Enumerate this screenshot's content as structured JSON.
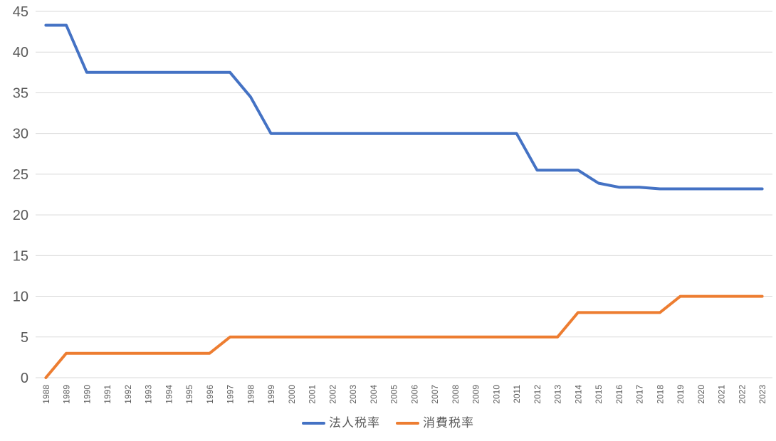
{
  "chart_data": {
    "type": "line",
    "title": "",
    "xlabel": "",
    "ylabel": "",
    "x": [
      "1988",
      "1989",
      "1990",
      "1991",
      "1992",
      "1993",
      "1994",
      "1995",
      "1996",
      "1997",
      "1998",
      "1999",
      "2000",
      "2001",
      "2002",
      "2003",
      "2004",
      "2005",
      "2006",
      "2007",
      "2008",
      "2009",
      "2010",
      "2011",
      "2012",
      "2013",
      "2014",
      "2015",
      "2016",
      "2017",
      "2018",
      "2019",
      "2020",
      "2021",
      "2022",
      "2023"
    ],
    "series": [
      {
        "id": "corporate-tax-rate",
        "name": "法人税率",
        "color": "#4472C4",
        "values": [
          43.3,
          43.3,
          37.5,
          37.5,
          37.5,
          37.5,
          37.5,
          37.5,
          37.5,
          37.5,
          34.5,
          30,
          30,
          30,
          30,
          30,
          30,
          30,
          30,
          30,
          30,
          30,
          30,
          30,
          25.5,
          25.5,
          25.5,
          23.9,
          23.4,
          23.4,
          23.2,
          23.2,
          23.2,
          23.2,
          23.2,
          23.2
        ]
      },
      {
        "id": "consumption-tax-rate",
        "name": "消費税率",
        "color": "#ED7D31",
        "values": [
          0,
          3,
          3,
          3,
          3,
          3,
          3,
          3,
          3,
          5,
          5,
          5,
          5,
          5,
          5,
          5,
          5,
          5,
          5,
          5,
          5,
          5,
          5,
          5,
          5,
          5,
          8,
          8,
          8,
          8,
          8,
          10,
          10,
          10,
          10,
          10
        ]
      }
    ],
    "ylim": [
      0,
      45
    ],
    "ytick_step": 5,
    "yticks": [
      0,
      5,
      10,
      15,
      20,
      25,
      30,
      35,
      40,
      45
    ],
    "grid": true,
    "legend_position": "bottom",
    "gridline_color": "#D9D9D9",
    "axis_label_color": "#595959",
    "background_color": "#FFFFFF"
  }
}
